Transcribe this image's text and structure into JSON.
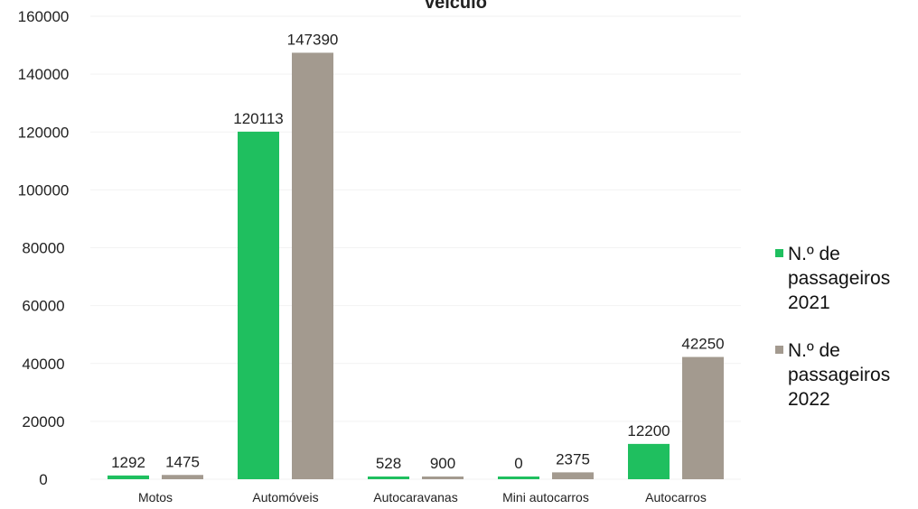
{
  "chart_data": {
    "type": "bar",
    "title": "veículo",
    "categories": [
      "Motos",
      "Automóveis",
      "Autocaravanas",
      "Mini autocarros",
      "Autocarros"
    ],
    "series": [
      {
        "name": "N.º de passageiros 2021",
        "color": "#1fbf5f",
        "values": [
          1292,
          120113,
          528,
          0,
          12200
        ]
      },
      {
        "name": "N.º de passageiros 2022",
        "color": "#a39a8f",
        "values": [
          1475,
          147390,
          900,
          2375,
          42250
        ]
      }
    ],
    "ylim": [
      0,
      160000
    ],
    "yticks": [
      "0",
      "20000",
      "40000",
      "60000",
      "80000",
      "100000",
      "120000",
      "140000",
      "160000"
    ],
    "legend_position": "right",
    "grid": true
  }
}
